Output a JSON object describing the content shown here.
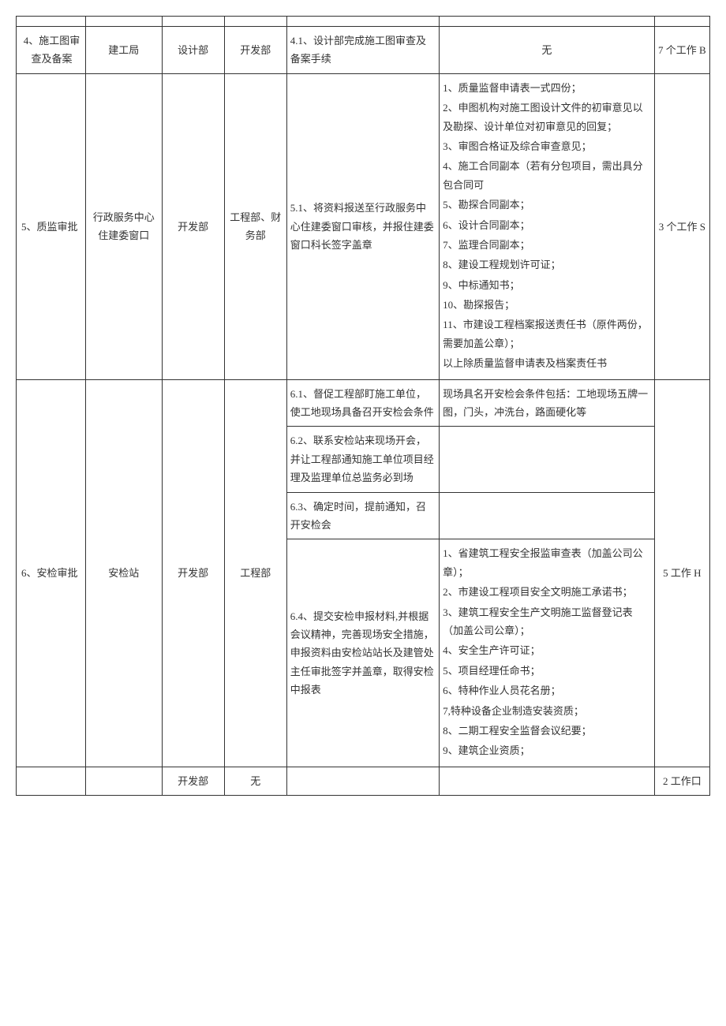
{
  "rows": {
    "r0": {
      "c1": "",
      "c2": "",
      "c3": "",
      "c4": "",
      "c5": "",
      "c6": "",
      "c7": ""
    },
    "r4": {
      "c1": "4、施工图审查及备案",
      "c2": "建工局",
      "c3": "设计部",
      "c4": "开发部",
      "c5": "4.1、设计部完成施工图审查及备案手续",
      "c6": "无",
      "c7": "7 个工作 B"
    },
    "r5": {
      "c1": "5、质监审批",
      "c2": "行政服务中心住建委窗口",
      "c3": "开发部",
      "c4": "工程部、财务部",
      "c5": "5.1、将资料报送至行政服务中心住建委窗口审核，并报住建委窗口科长签字盖章",
      "c6_lines": [
        "1、质量监督申请表一式四份；",
        "2、申图机构对施工图设计文件的初审意见以及勘探、设计单位对初审意见的回复；",
        "3、审图合格证及综合审查意见；",
        "4、施工合同副本（若有分包项目，需出具分包合同可",
        "5、勘探合同副本；",
        "6、设计合同副本；",
        "7、监理合同副本；",
        "8、建设工程规划许可证；",
        "9、中标通知书；",
        "10、勘探报告；",
        "11、市建设工程档案报送责任书（原件两份，需要加盖公章）；",
        "以上除质量监督申请表及档案责任书"
      ],
      "c7": "3 个工作 S"
    },
    "r6": {
      "c1": "6、安检审批",
      "c2": "安检站",
      "c3": "开发部",
      "c4": "工程部",
      "c5_1": "6.1、督促工程部盯施工单位，使工地现场具备召开安检会条件",
      "c6_1": "现场具名开安检会条件包括：工地现场五牌一图，门头，冲洗台，路面硬化等",
      "c5_2": "6.2、联系安检站来现场开会，并让工程部通知施工单位项目经理及监理单位总监务必到场",
      "c6_2": "",
      "c5_3": "6.3、确定时间，提前通知，召开安检会",
      "c6_3": "",
      "c5_4": "6.4、提交安检申报材料,并根据会议精神，完善现场安全措施，申报资料由安检站站长及建管处主任审批签字并盖章，取得安检中报表",
      "c6_4_lines": [
        "1、省建筑工程安全报监审查表（加盖公司公章）；",
        "2、市建设工程项目安全文明施工承诺书；",
        "3、建筑工程安全生产文明施工监督登记表（加盖公司公章）；",
        "4、安全生产许可证；",
        "5、项目经理任命书；",
        "6、特种作业人员花名册；",
        "7,特种设备企业制造安装资质；",
        "8、二期工程安全监督会议纪要；",
        "9、建筑企业资质；"
      ],
      "c7": "5 工作 H"
    },
    "r7": {
      "c1": "",
      "c2": "",
      "c3": "开发部",
      "c4": "无",
      "c5": "",
      "c6": "",
      "c7": "2 工作口"
    }
  }
}
